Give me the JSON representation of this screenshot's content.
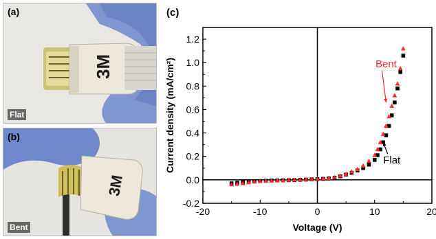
{
  "panels": {
    "a": {
      "label": "(a)",
      "state": "Flat"
    },
    "b": {
      "label": "(b)",
      "state": "Bent"
    },
    "c": {
      "label": "(c)"
    }
  },
  "photo_logo": "3M",
  "colors": {
    "flat": "#000000",
    "bent": "#ff2a2a",
    "glove": "#6c86c8",
    "connector": "#ece7da"
  },
  "chart_data": {
    "type": "scatter",
    "title": "",
    "xlabel": "Voltage (V)",
    "ylabel": "Current density (mA/cm²)",
    "xlim": [
      -20,
      20
    ],
    "ylim": [
      -0.2,
      1.3
    ],
    "xticks": [
      -20,
      -10,
      0,
      10,
      20
    ],
    "xtick_labels": [
      "-20",
      "-10",
      "0",
      "10",
      "20"
    ],
    "yticks": [
      -0.2,
      0.0,
      0.2,
      0.4,
      0.6,
      0.8,
      1.0,
      1.2
    ],
    "ytick_labels": [
      "-0.2",
      "0.0",
      "0.2",
      "0.4",
      "0.6",
      "0.8",
      "1.0",
      "1.2"
    ],
    "grid": false,
    "series": [
      {
        "name": "Flat",
        "marker": "square",
        "x": [
          -15,
          -14,
          -13,
          -12,
          -11,
          -10,
          -9,
          -8,
          -7,
          -6,
          -5,
          -4,
          -3,
          -2,
          -1,
          0,
          1,
          2,
          3,
          4,
          5,
          6,
          7,
          8,
          9,
          10,
          10.5,
          11,
          11.5,
          12,
          12.5,
          13,
          13.5,
          14,
          14.5,
          15
        ],
        "y": [
          -0.03,
          -0.025,
          -0.02,
          -0.015,
          -0.012,
          -0.01,
          -0.008,
          -0.006,
          -0.005,
          -0.004,
          -0.003,
          -0.002,
          0.0,
          0.002,
          0.004,
          0.006,
          0.008,
          0.012,
          0.018,
          0.03,
          0.045,
          0.06,
          0.08,
          0.1,
          0.13,
          0.17,
          0.21,
          0.26,
          0.32,
          0.38,
          0.46,
          0.55,
          0.66,
          0.78,
          0.92,
          1.06
        ]
      },
      {
        "name": "Bent",
        "marker": "triangle",
        "x": [
          -15,
          -14,
          -13,
          -12,
          -11,
          -10,
          -9,
          -8,
          -7,
          -6,
          -5,
          -4,
          -3,
          -2,
          -1,
          0,
          1,
          2,
          3,
          4,
          5,
          6,
          7,
          8,
          9,
          10,
          10.5,
          11,
          11.5,
          12,
          12.5,
          13,
          13.5,
          14,
          14.5,
          15
        ],
        "y": [
          -0.04,
          -0.035,
          -0.03,
          -0.022,
          -0.016,
          -0.012,
          -0.009,
          -0.007,
          -0.005,
          -0.003,
          -0.002,
          0.0,
          0.002,
          0.004,
          0.006,
          0.008,
          0.011,
          0.015,
          0.022,
          0.035,
          0.05,
          0.07,
          0.09,
          0.12,
          0.16,
          0.21,
          0.26,
          0.32,
          0.39,
          0.46,
          0.54,
          0.63,
          0.72,
          0.82,
          0.95,
          1.12
        ]
      }
    ],
    "annotations": [
      {
        "text": "Bent",
        "series": "Bent",
        "x": 12,
        "y": 0.96,
        "target": [
          12,
          0.66
        ]
      },
      {
        "text": "Flat",
        "series": "Flat",
        "x": 13,
        "y": 0.14,
        "target": [
          11.5,
          0.32
        ]
      }
    ]
  }
}
